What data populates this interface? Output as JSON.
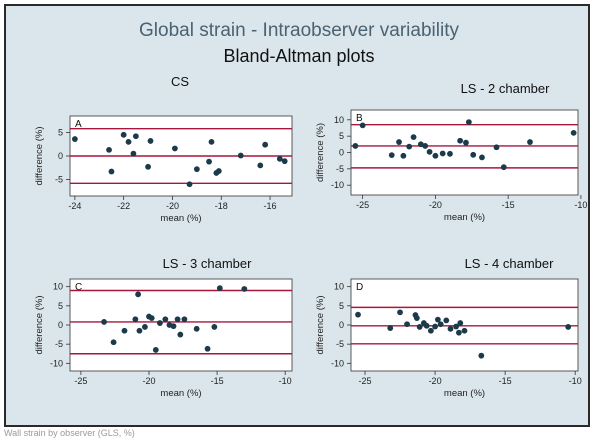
{
  "figure": {
    "title": "Global strain - Intraobserver variability",
    "subtitle": "Bland-Altman plots",
    "footer": "Wall strain by observer (GLS, %)"
  },
  "colors": {
    "background": "#dbe6ec",
    "plot_region": "#ffffff",
    "limit_line": "#a8163c",
    "points": "#1c3b4a"
  },
  "chart_data": [
    {
      "type": "scatter",
      "panel": "A",
      "title": "CS",
      "xlabel": "mean (%)",
      "ylabel": "difference (%)",
      "xlim": [
        -24.2,
        -15.1
      ],
      "ylim": [
        -8.5,
        8.5
      ],
      "xticks": [
        -24,
        -22,
        -20,
        -18,
        -16
      ],
      "yticks": [
        -5,
        0,
        5
      ],
      "ref_lines": [
        5.8,
        0.0,
        -5.8
      ],
      "points": [
        [
          -24.0,
          3.6
        ],
        [
          -22.6,
          1.3
        ],
        [
          -22.5,
          -3.3
        ],
        [
          -22.0,
          4.5
        ],
        [
          -21.8,
          3.0
        ],
        [
          -21.6,
          0.5
        ],
        [
          -21.5,
          4.2
        ],
        [
          -21.0,
          -2.3
        ],
        [
          -20.9,
          3.2
        ],
        [
          -19.9,
          1.6
        ],
        [
          -19.3,
          -6.0
        ],
        [
          -19.0,
          -2.8
        ],
        [
          -18.5,
          -1.2
        ],
        [
          -18.4,
          3.0
        ],
        [
          -18.2,
          -3.6
        ],
        [
          -18.1,
          -3.2
        ],
        [
          -17.2,
          0.1
        ],
        [
          -16.4,
          -2.0
        ],
        [
          -16.2,
          2.4
        ],
        [
          -15.6,
          -0.6
        ],
        [
          -15.4,
          -1.1
        ]
      ]
    },
    {
      "type": "scatter",
      "panel": "B",
      "title": "LS - 2 chamber",
      "xlabel": "mean (%)",
      "ylabel": "difference (%)",
      "xlim": [
        -25.8,
        -10.2
      ],
      "ylim": [
        -13,
        13
      ],
      "xticks": [
        -25,
        -20,
        -15,
        -10
      ],
      "yticks": [
        -10,
        -5,
        0,
        5,
        10
      ],
      "ref_lines": [
        8.5,
        2.0,
        -4.7
      ],
      "points": [
        [
          -25.5,
          2.0
        ],
        [
          -25.0,
          8.3
        ],
        [
          -23.0,
          -0.8
        ],
        [
          -22.5,
          3.2
        ],
        [
          -22.2,
          -1.0
        ],
        [
          -21.8,
          1.8
        ],
        [
          -21.5,
          4.7
        ],
        [
          -21.0,
          2.5
        ],
        [
          -20.7,
          2.0
        ],
        [
          -20.4,
          0.2
        ],
        [
          -20.0,
          -1.0
        ],
        [
          -19.5,
          -0.3
        ],
        [
          -19.0,
          -0.4
        ],
        [
          -18.3,
          3.6
        ],
        [
          -17.9,
          3.0
        ],
        [
          -17.7,
          9.3
        ],
        [
          -17.4,
          -0.7
        ],
        [
          -16.8,
          -1.5
        ],
        [
          -15.8,
          1.6
        ],
        [
          -15.3,
          -4.5
        ],
        [
          -13.5,
          3.2
        ],
        [
          -10.5,
          6.0
        ]
      ]
    },
    {
      "type": "scatter",
      "panel": "C",
      "title": "LS - 3 chamber",
      "xlabel": "mean (%)",
      "ylabel": "difference (%)",
      "xlim": [
        -25.8,
        -9.5
      ],
      "ylim": [
        -12,
        12
      ],
      "xticks": [
        -25,
        -20,
        -15,
        -10
      ],
      "yticks": [
        -10,
        -5,
        0,
        5,
        10
      ],
      "ref_lines": [
        9.0,
        0.8,
        -7.5
      ],
      "points": [
        [
          -23.3,
          0.8
        ],
        [
          -22.6,
          -4.5
        ],
        [
          -21.8,
          -1.5
        ],
        [
          -21.0,
          1.5
        ],
        [
          -20.8,
          8.0
        ],
        [
          -20.7,
          -1.5
        ],
        [
          -20.3,
          -0.5
        ],
        [
          -20.0,
          2.2
        ],
        [
          -19.8,
          1.8
        ],
        [
          -19.5,
          -6.5
        ],
        [
          -19.2,
          0.5
        ],
        [
          -18.8,
          1.5
        ],
        [
          -18.5,
          0.0
        ],
        [
          -18.2,
          -0.3
        ],
        [
          -17.9,
          1.5
        ],
        [
          -17.7,
          -2.5
        ],
        [
          -17.4,
          1.5
        ],
        [
          -16.5,
          -1.0
        ],
        [
          -15.7,
          -6.2
        ],
        [
          -15.2,
          -0.5
        ],
        [
          -14.8,
          9.6
        ],
        [
          -13.0,
          9.4
        ]
      ]
    },
    {
      "type": "scatter",
      "panel": "D",
      "title": "LS - 4 chamber",
      "xlabel": "mean (%)",
      "ylabel": "difference (%)",
      "xlim": [
        -26.0,
        -9.8
      ],
      "ylim": [
        -12,
        12
      ],
      "xticks": [
        -25,
        -20,
        -15,
        -10
      ],
      "yticks": [
        -10,
        -5,
        0,
        5,
        10
      ],
      "ref_lines": [
        4.6,
        -0.2,
        -4.9
      ],
      "points": [
        [
          -25.5,
          2.7
        ],
        [
          -23.2,
          -0.8
        ],
        [
          -22.5,
          3.3
        ],
        [
          -22.0,
          0.2
        ],
        [
          -21.4,
          2.6
        ],
        [
          -21.3,
          1.8
        ],
        [
          -21.1,
          -0.5
        ],
        [
          -20.8,
          0.5
        ],
        [
          -20.6,
          -0.2
        ],
        [
          -20.3,
          -1.5
        ],
        [
          -20.0,
          -0.4
        ],
        [
          -19.8,
          1.4
        ],
        [
          -19.6,
          0.2
        ],
        [
          -19.2,
          1.2
        ],
        [
          -18.9,
          -1.0
        ],
        [
          -18.5,
          -0.4
        ],
        [
          -18.3,
          -2.0
        ],
        [
          -18.2,
          0.5
        ],
        [
          -17.9,
          -1.5
        ],
        [
          -16.7,
          -8.0
        ],
        [
          -10.5,
          -0.5
        ]
      ]
    }
  ]
}
